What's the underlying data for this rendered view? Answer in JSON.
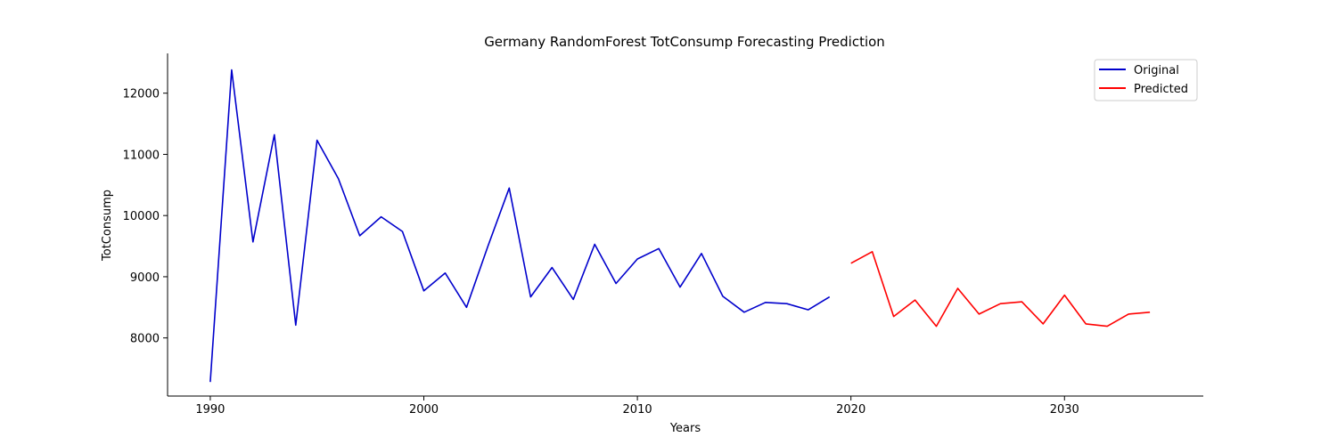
{
  "chart_data": {
    "type": "line",
    "title": "Germany RandomForest TotConsump Forecasting Prediction",
    "xlabel": "Years",
    "ylabel": "TotConsump",
    "xlim": [
      1988,
      2036.5
    ],
    "ylim": [
      7050,
      12650
    ],
    "xticks": [
      1990,
      2000,
      2010,
      2020,
      2030
    ],
    "yticks": [
      8000,
      9000,
      10000,
      11000,
      12000
    ],
    "grid": false,
    "legend": "top-right",
    "series": [
      {
        "name": "Original",
        "color": "#0000cc",
        "x": [
          1990,
          1991,
          1992,
          1993,
          1994,
          1995,
          1996,
          1997,
          1998,
          1999,
          2000,
          2001,
          2002,
          2003,
          2004,
          2005,
          2006,
          2007,
          2008,
          2009,
          2010,
          2011,
          2012,
          2013,
          2014,
          2015,
          2016,
          2017,
          2018,
          2019
        ],
        "y": [
          7280,
          12380,
          9570,
          11320,
          8210,
          11230,
          10600,
          9670,
          9980,
          9740,
          8770,
          9060,
          8500,
          9500,
          10450,
          8670,
          9150,
          8630,
          9530,
          8890,
          9290,
          9460,
          8830,
          9380,
          8680,
          8420,
          8580,
          8560,
          8460,
          8670
        ]
      },
      {
        "name": "Predicted",
        "color": "#ff0000",
        "x": [
          2020,
          2021,
          2022,
          2023,
          2024,
          2025,
          2026,
          2027,
          2028,
          2029,
          2030,
          2031,
          2032,
          2033,
          2034
        ],
        "y": [
          9220,
          9410,
          8350,
          8620,
          8190,
          8810,
          8390,
          8560,
          8590,
          8230,
          8700,
          8230,
          8190,
          8390,
          8420
        ]
      }
    ]
  }
}
